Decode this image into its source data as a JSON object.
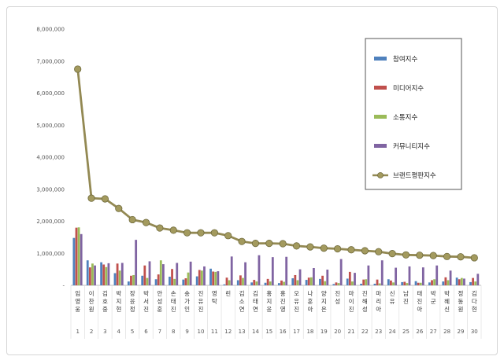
{
  "chart_data": {
    "type": "bar",
    "title": "",
    "xlabel": "",
    "ylabel": "",
    "ylim": [
      0,
      8000000
    ],
    "yticks": [
      0,
      1000000,
      2000000,
      3000000,
      4000000,
      5000000,
      6000000,
      7000000,
      8000000
    ],
    "ytick_labels": [
      "-",
      "1,000,000",
      "2,000,000",
      "3,000,000",
      "4,000,000",
      "5,000,000",
      "6,000,000",
      "7,000,000",
      "8,000,000"
    ],
    "grid": false,
    "legend_position": "top-right",
    "categories": [
      "임영웅",
      "이찬원",
      "김호중",
      "박지현",
      "장윤정",
      "박서진",
      "안성훈",
      "손태진",
      "송가인",
      "진유진",
      "영탁",
      "린",
      "김소연",
      "김태연",
      "홍지윤",
      "홍진영",
      "오유진",
      "나훈아",
      "양지은",
      "진성",
      "마이진",
      "진해성",
      "마리아",
      "신유",
      "남진",
      "태진아",
      "박군",
      "박혜신",
      "정동원",
      "김다현"
    ],
    "index_labels": [
      "1",
      "2",
      "3",
      "4",
      "5",
      "6",
      "7",
      "8",
      "9",
      "10",
      "11",
      "12",
      "13",
      "14",
      "15",
      "16",
      "17",
      "18",
      "19",
      "20",
      "21",
      "22",
      "23",
      "24",
      "25",
      "26",
      "27",
      "28",
      "29",
      "30"
    ],
    "series": [
      {
        "name": "참여지수",
        "color": "#4f81bd",
        "values": [
          1480000,
          780000,
          720000,
          380000,
          120000,
          300000,
          190000,
          270000,
          180000,
          280000,
          520000,
          30000,
          160000,
          90000,
          80000,
          70000,
          220000,
          170000,
          200000,
          40000,
          210000,
          50000,
          50000,
          190000,
          100000,
          130000,
          90000,
          120000,
          240000,
          100000
        ]
      },
      {
        "name": "미디어지수",
        "color": "#c0504d",
        "values": [
          1800000,
          560000,
          650000,
          680000,
          300000,
          620000,
          340000,
          510000,
          220000,
          480000,
          430000,
          240000,
          310000,
          170000,
          200000,
          150000,
          320000,
          240000,
          300000,
          90000,
          420000,
          180000,
          180000,
          150000,
          110000,
          80000,
          160000,
          250000,
          190000,
          230000
        ]
      },
      {
        "name": "소통지수",
        "color": "#9bbb59",
        "values": [
          1810000,
          680000,
          570000,
          460000,
          320000,
          230000,
          780000,
          200000,
          400000,
          460000,
          420000,
          160000,
          230000,
          120000,
          120000,
          110000,
          160000,
          250000,
          130000,
          70000,
          120000,
          190000,
          60000,
          90000,
          70000,
          80000,
          190000,
          160000,
          230000,
          120000
        ]
      },
      {
        "name": "커뮤니티지수",
        "color": "#8064a2",
        "values": [
          1600000,
          620000,
          690000,
          700000,
          1420000,
          750000,
          660000,
          700000,
          740000,
          590000,
          440000,
          900000,
          720000,
          940000,
          880000,
          890000,
          500000,
          540000,
          490000,
          820000,
          390000,
          620000,
          780000,
          550000,
          590000,
          560000,
          620000,
          460000,
          210000,
          360000
        ]
      },
      {
        "name": "브랜드평판지수",
        "color": "#938953",
        "values": [
          6750000,
          2720000,
          2700000,
          2400000,
          2050000,
          1960000,
          1790000,
          1720000,
          1640000,
          1640000,
          1640000,
          1550000,
          1370000,
          1310000,
          1310000,
          1300000,
          1230000,
          1200000,
          1160000,
          1140000,
          1110000,
          1080000,
          1050000,
          990000,
          950000,
          940000,
          930000,
          900000,
          890000,
          860000
        ]
      }
    ]
  }
}
